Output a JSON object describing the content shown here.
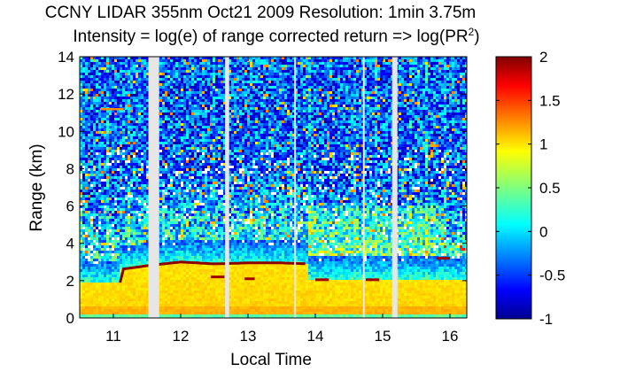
{
  "chart_data": {
    "type": "heatmap",
    "title_line1": "CCNY LIDAR 355nm Oct21 2009 Resolution: 1min 3.75m",
    "title_line2_prefix": "Intensity = log(e) of range corrected return => log(PR",
    "title_line2_sup": "2",
    "title_line2_suffix": ")",
    "xlabel": "Local Time",
    "ylabel": "Range (km)",
    "xlim": [
      10.5,
      16.25
    ],
    "ylim": [
      0,
      14
    ],
    "xticks": [
      "11",
      "12",
      "13",
      "14",
      "15",
      "16"
    ],
    "xtick_values": [
      11,
      12,
      13,
      14,
      15,
      16
    ],
    "yticks": [
      "0",
      "2",
      "4",
      "6",
      "8",
      "10",
      "12",
      "14"
    ],
    "ytick_values": [
      0,
      2,
      4,
      6,
      8,
      10,
      12,
      14
    ],
    "colorbar": {
      "range": [
        -1,
        2
      ],
      "ticks": [
        "-1",
        "-0.5",
        "0",
        "0.5",
        "1",
        "1.5",
        "2"
      ],
      "tick_values": [
        -1,
        -0.5,
        0,
        0.5,
        1,
        1.5,
        2
      ],
      "colormap": "jet"
    },
    "data_gaps_hours": [
      [
        11.52,
        11.68
      ],
      [
        12.66,
        12.72
      ],
      [
        15.14,
        15.22
      ]
    ],
    "thin_gaps_hours": [
      13.7,
      14.72
    ],
    "boundary_layer_top_km": [
      [
        11.1,
        2.6
      ],
      [
        11.5,
        2.8
      ],
      [
        12.0,
        3.0
      ],
      [
        12.5,
        2.9
      ],
      [
        13.0,
        2.95
      ],
      [
        13.5,
        2.95
      ],
      [
        13.9,
        2.9
      ]
    ],
    "low_cloud_segments": [
      {
        "t0": 12.45,
        "t1": 12.65,
        "h": 2.2
      },
      {
        "t0": 12.95,
        "t1": 13.1,
        "h": 2.1
      },
      {
        "t0": 14.0,
        "t1": 14.2,
        "h": 2.05
      },
      {
        "t0": 14.75,
        "t1": 14.95,
        "h": 2.05
      },
      {
        "t0": 15.8,
        "t1": 16.0,
        "h": 3.2
      }
    ],
    "aloft_aerosol_layer": {
      "t0": 10.8,
      "t1": 11.15,
      "h": 11.2
    }
  },
  "colors": {
    "cmap_low": "#00008f",
    "cmap_high": "#800000",
    "gap": "#e6e6e6"
  }
}
